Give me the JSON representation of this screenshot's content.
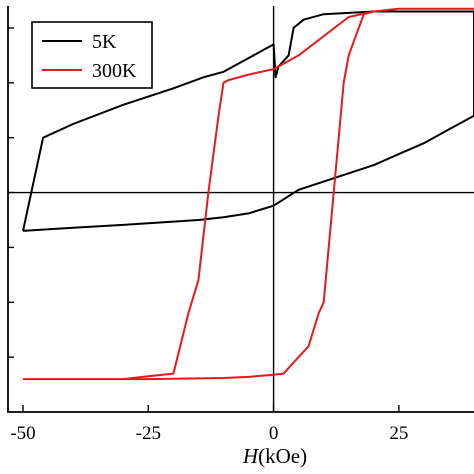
{
  "chart_data": {
    "type": "line",
    "xlabel_italic": "H",
    "xlabel_unit": "(kOe)",
    "ylabel": "",
    "xlim": [
      -53,
      40
    ],
    "ylim": [
      -40,
      34
    ],
    "x_ticks": [
      -50,
      -25,
      0,
      25
    ],
    "x_tick_labels": [
      "-50",
      "-25",
      "0",
      "25"
    ],
    "y_ticks": [
      -30,
      -20,
      -10,
      0,
      10,
      20,
      30
    ],
    "grid": false,
    "zero_lines": true,
    "legend": {
      "position": "top-left"
    },
    "series": [
      {
        "name": "5K",
        "color": "#000000",
        "x": [
          -50,
          -46,
          -40,
          -30,
          -20,
          -14,
          -10,
          -6,
          -2,
          0,
          0.4,
          1,
          2,
          3,
          4,
          6,
          10,
          20,
          30,
          40
        ],
        "y": [
          -7,
          10,
          12.5,
          16,
          19,
          21,
          22,
          24,
          26,
          27,
          21,
          23,
          24,
          25,
          30,
          31.5,
          32.5,
          33,
          33,
          33
        ],
        "return_x": [
          40,
          35,
          30,
          25,
          20,
          15,
          10,
          5,
          0,
          -5,
          -10,
          -15,
          -20,
          -25,
          -30,
          -40,
          -50
        ],
        "return_y": [
          14,
          11.5,
          9,
          7,
          5,
          3.5,
          2,
          0.5,
          -2.4,
          -3.8,
          -4.5,
          -5,
          -5.3,
          -5.6,
          -5.9,
          -6.4,
          -7
        ]
      },
      {
        "name": "300K",
        "color": "#e8191b",
        "x": [
          -50,
          -40,
          -30,
          -25,
          -20,
          -17,
          -15,
          -13,
          -11,
          -10,
          -9,
          -5,
          0,
          5,
          15,
          20,
          25,
          40
        ],
        "y": [
          -34,
          -34,
          -34,
          -33.5,
          -33,
          -22,
          -16,
          0,
          14,
          20,
          20.5,
          21.5,
          22.5,
          25,
          32,
          33,
          33.5,
          33.5
        ],
        "return_x": [
          40,
          25,
          20,
          18,
          15,
          14,
          13,
          12,
          11,
          10,
          9,
          7,
          5,
          2,
          0,
          -5,
          -10,
          -25,
          -50
        ],
        "return_y": [
          33.5,
          33.5,
          33,
          32.5,
          25,
          20,
          10,
          0,
          -10,
          -20,
          -22,
          -28,
          -30,
          -33,
          -33.2,
          -33.6,
          -33.8,
          -34,
          -34
        ]
      }
    ]
  }
}
